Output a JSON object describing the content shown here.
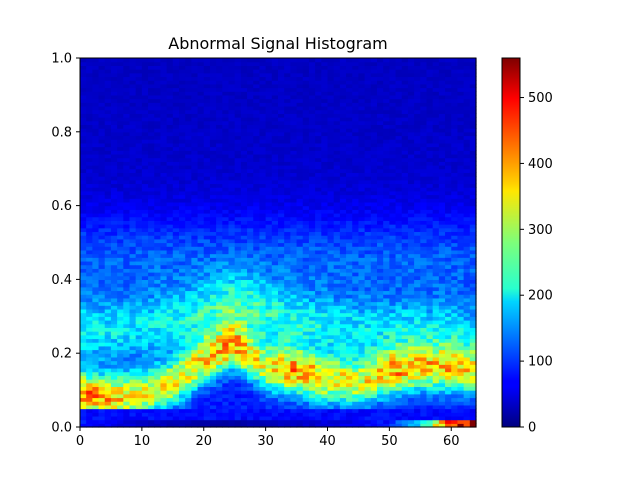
{
  "chart_data": {
    "type": "heatmap",
    "title": "Abnormal Signal Histogram",
    "xlabel": "",
    "ylabel": "",
    "xlim": [
      0,
      64
    ],
    "ylim": [
      0,
      1.0
    ],
    "x_ticks": [
      "0",
      "10",
      "20",
      "30",
      "40",
      "50",
      "60"
    ],
    "x_tick_values": [
      0,
      10,
      20,
      30,
      40,
      50,
      60
    ],
    "y_ticks": [
      "0.0",
      "0.2",
      "0.4",
      "0.6",
      "0.8",
      "1.0"
    ],
    "y_tick_values": [
      0.0,
      0.2,
      0.4,
      0.6,
      0.8,
      1.0
    ],
    "colorbar": {
      "colormap": "jet",
      "range": [
        0,
        560
      ],
      "ticks": [
        "0",
        "100",
        "200",
        "300",
        "400",
        "500"
      ],
      "tick_values": [
        0,
        100,
        200,
        300,
        400,
        500
      ]
    },
    "grid": false,
    "bins": {
      "x": 64,
      "y": 100
    },
    "density_profile": {
      "x": [
        0,
        5,
        10,
        15,
        20,
        25,
        30,
        35,
        40,
        45,
        50,
        55,
        60,
        64
      ],
      "low_band_center": [
        0.09,
        0.08,
        0.09,
        0.12,
        0.18,
        0.22,
        0.16,
        0.15,
        0.13,
        0.12,
        0.15,
        0.16,
        0.16,
        0.15
      ],
      "low_band_peak": [
        330,
        300,
        270,
        260,
        270,
        280,
        250,
        320,
        280,
        250,
        300,
        270,
        270,
        250
      ],
      "upper_band_center": [
        0.26,
        0.26,
        0.27,
        0.28,
        0.3,
        0.32,
        0.3,
        0.28,
        0.27,
        0.26,
        0.26,
        0.26,
        0.26,
        0.25
      ],
      "upper_band_peak": [
        200,
        190,
        190,
        200,
        230,
        250,
        230,
        210,
        200,
        190,
        190,
        190,
        180,
        170
      ],
      "bottom_row_values": [
        80,
        60,
        40,
        30,
        20,
        20,
        30,
        40,
        50,
        60,
        80,
        200,
        500,
        560
      ]
    }
  }
}
